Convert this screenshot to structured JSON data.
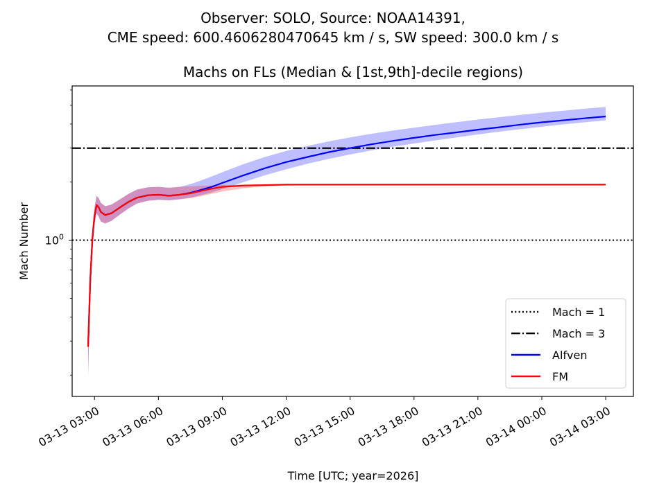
{
  "chart_data": {
    "type": "line",
    "suptitle_lines": [
      "Observer: SOLO, Source: NOAA14391,",
      "CME speed: 600.4606280470645 km / s, SW speed: 300.0 km / s"
    ],
    "title": "Machs on FLs (Median & [1st,9th]-decile regions)",
    "xlabel": "Time [UTC; year=2026]",
    "ylabel": "Mach Number",
    "yscale": "log",
    "ylim": [
      0.155,
      6.3
    ],
    "xlim_hours": [
      -1.05,
      25.3
    ],
    "x_reference": "03-13 03:00",
    "xticks": [
      {
        "label": "03-13 03:00",
        "hours": 0
      },
      {
        "label": "03-13 06:00",
        "hours": 3
      },
      {
        "label": "03-13 09:00",
        "hours": 6
      },
      {
        "label": "03-13 12:00",
        "hours": 9
      },
      {
        "label": "03-13 15:00",
        "hours": 12
      },
      {
        "label": "03-13 18:00",
        "hours": 15
      },
      {
        "label": "03-13 21:00",
        "hours": 18
      },
      {
        "label": "03-14 00:00",
        "hours": 21
      },
      {
        "label": "03-14 03:00",
        "hours": 24
      }
    ],
    "yticks": [
      {
        "label": "10",
        "sup": "0",
        "value": 1.0
      }
    ],
    "hlines": [
      {
        "name": "Mach = 1",
        "value": 1.0,
        "style": "dotted",
        "color": "#000000"
      },
      {
        "name": "Mach = 3",
        "value": 3.0,
        "style": "dashdot",
        "color": "#000000"
      }
    ],
    "series": [
      {
        "name": "Alfven",
        "color": "#0000ff",
        "band_color": "#0000ff",
        "band_alpha": 0.25,
        "x_hours": [
          -0.3,
          -0.2,
          -0.1,
          0.0,
          0.1,
          0.2,
          0.3,
          0.5,
          0.8,
          1.2,
          1.6,
          2.0,
          2.5,
          3.0,
          3.5,
          4.0,
          4.5,
          5.0,
          5.5,
          6.0,
          7.0,
          8.0,
          9.0,
          10.0,
          11.0,
          12.0,
          13.0,
          14.0,
          15.0,
          16.0,
          17.0,
          18.0,
          19.0,
          20.0,
          21.0,
          22.0,
          23.0,
          24.0
        ],
        "median": [
          0.28,
          0.62,
          1.02,
          1.33,
          1.52,
          1.48,
          1.4,
          1.35,
          1.38,
          1.48,
          1.58,
          1.66,
          1.71,
          1.72,
          1.7,
          1.72,
          1.76,
          1.82,
          1.89,
          1.98,
          2.17,
          2.36,
          2.54,
          2.7,
          2.86,
          3.0,
          3.14,
          3.27,
          3.39,
          3.51,
          3.62,
          3.74,
          3.85,
          3.97,
          4.08,
          4.18,
          4.28,
          4.38
        ],
        "p10": [
          0.2,
          0.5,
          0.88,
          1.22,
          1.38,
          1.32,
          1.25,
          1.22,
          1.26,
          1.36,
          1.46,
          1.55,
          1.6,
          1.62,
          1.61,
          1.63,
          1.66,
          1.71,
          1.77,
          1.84,
          2.0,
          2.17,
          2.33,
          2.49,
          2.64,
          2.78,
          2.92,
          3.05,
          3.17,
          3.29,
          3.41,
          3.53,
          3.65,
          3.76,
          3.87,
          3.98,
          4.08,
          4.18
        ],
        "p90": [
          0.36,
          0.74,
          1.15,
          1.48,
          1.7,
          1.65,
          1.56,
          1.5,
          1.53,
          1.63,
          1.74,
          1.83,
          1.88,
          1.89,
          1.87,
          1.89,
          1.95,
          2.04,
          2.14,
          2.25,
          2.48,
          2.7,
          2.9,
          3.08,
          3.25,
          3.41,
          3.56,
          3.7,
          3.83,
          3.96,
          4.09,
          4.22,
          4.34,
          4.46,
          4.58,
          4.69,
          4.8,
          4.9
        ]
      },
      {
        "name": "FM",
        "color": "#ff0000",
        "band_color": "#ff0000",
        "band_alpha": 0.25,
        "x_hours": [
          -0.3,
          -0.2,
          -0.1,
          0.0,
          0.1,
          0.2,
          0.3,
          0.5,
          0.8,
          1.2,
          1.6,
          2.0,
          2.5,
          3.0,
          3.5,
          4.0,
          4.5,
          5.0,
          5.5,
          6.0,
          7.0,
          8.0,
          9.0,
          10.0,
          11.0,
          12.0,
          13.0,
          14.0,
          15.0,
          16.0,
          17.0,
          18.0,
          19.0,
          20.0,
          21.0,
          22.0,
          23.0,
          24.0
        ],
        "median": [
          0.28,
          0.62,
          1.02,
          1.33,
          1.52,
          1.48,
          1.4,
          1.35,
          1.38,
          1.48,
          1.58,
          1.66,
          1.71,
          1.72,
          1.7,
          1.72,
          1.75,
          1.8,
          1.85,
          1.89,
          1.92,
          1.93,
          1.94,
          1.94,
          1.94,
          1.94,
          1.94,
          1.94,
          1.94,
          1.94,
          1.94,
          1.94,
          1.94,
          1.94,
          1.94,
          1.94,
          1.94,
          1.94
        ],
        "p10": [
          0.2,
          0.5,
          0.88,
          1.22,
          1.38,
          1.32,
          1.25,
          1.22,
          1.26,
          1.36,
          1.46,
          1.55,
          1.6,
          1.62,
          1.61,
          1.63,
          1.65,
          1.69,
          1.74,
          1.79,
          1.86,
          1.9,
          1.92,
          1.93,
          1.93,
          1.93,
          1.93,
          1.93,
          1.93,
          1.93,
          1.93,
          1.93,
          1.93,
          1.93,
          1.93,
          1.93,
          1.93,
          1.93
        ],
        "p90": [
          0.36,
          0.74,
          1.15,
          1.48,
          1.7,
          1.65,
          1.56,
          1.5,
          1.53,
          1.63,
          1.74,
          1.83,
          1.88,
          1.89,
          1.87,
          1.89,
          1.9,
          1.91,
          1.92,
          1.93,
          1.94,
          1.95,
          1.95,
          1.95,
          1.95,
          1.95,
          1.95,
          1.95,
          1.95,
          1.95,
          1.95,
          1.95,
          1.95,
          1.95,
          1.95,
          1.95,
          1.95,
          1.95
        ]
      }
    ],
    "legend": {
      "position": "lower-right",
      "entries": [
        {
          "label": "Mach = 1",
          "style": "dotted",
          "color": "#000000"
        },
        {
          "label": "Mach = 3",
          "style": "dashdot",
          "color": "#000000"
        },
        {
          "label": "Alfven",
          "style": "solid",
          "color": "#0000ff"
        },
        {
          "label": "FM",
          "style": "solid",
          "color": "#ff0000"
        }
      ]
    },
    "grid": false
  }
}
